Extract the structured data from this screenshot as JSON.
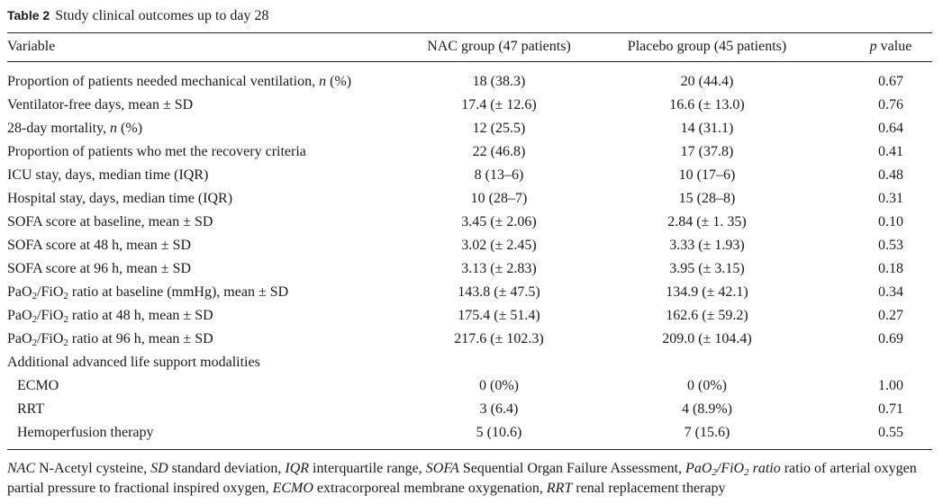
{
  "table": {
    "label": "Table 2",
    "title": "Study clinical outcomes up to day 28",
    "headers": {
      "variable": "Variable",
      "nac": "NAC group (47 patients)",
      "placebo": "Placebo group (45 patients)",
      "p_prefix": "p",
      "p_suffix": " value"
    },
    "rows": [
      {
        "variable": "Proportion of patients needed mechanical ventilation, ",
        "variable_em": "n",
        "variable_tail": " (%)",
        "nac": "18 (38.3)",
        "placebo": "20 (44.4)",
        "p": "0.67"
      },
      {
        "variable": "Ventilator-free days, mean ± SD",
        "nac": "17.4 (± 12.6)",
        "placebo": "16.6 (± 13.0)",
        "p": "0.76"
      },
      {
        "variable": "28-day mortality, ",
        "variable_em": "n",
        "variable_tail": " (%)",
        "nac": "12 (25.5)",
        "placebo": "14 (31.1)",
        "p": "0.64"
      },
      {
        "variable": "Proportion of patients who met the recovery criteria",
        "nac": "22 (46.8)",
        "placebo": "17 (37.8)",
        "p": "0.41"
      },
      {
        "variable": "ICU stay, days, median time (IQR)",
        "nac": "8 (13–6)",
        "placebo": "10 (17–6)",
        "p": "0.48"
      },
      {
        "variable": "Hospital stay, days, median time (IQR)",
        "nac": "10 (28–7)",
        "placebo": "15 (28–8)",
        "p": "0.31"
      },
      {
        "variable": "SOFA score at baseline, mean ± SD",
        "nac": "3.45 (± 2.06)",
        "placebo": "2.84 (± 1. 35)",
        "p": "0.10"
      },
      {
        "variable": "SOFA score at 48 h, mean ± SD",
        "nac": "3.02 (± 2.45)",
        "placebo": "3.33 (± 1.93)",
        "p": "0.53"
      },
      {
        "variable": "SOFA score at 96 h, mean ± SD",
        "nac": "3.13 (± 2.83)",
        "placebo": "3.95 (± 3.15)",
        "p": "0.18"
      },
      {
        "variable": "PaO2/FiO2 ratio at baseline (mmHg), mean ± SD",
        "nac": "143.8 (± 47.5)",
        "placebo": "134.9 (± 42.1)",
        "p": "0.34"
      },
      {
        "variable": "PaO2/FiO2 ratio at 48 h, mean ± SD",
        "nac": "175.4 (± 51.4)",
        "placebo": "162.6 (± 59.2)",
        "p": "0.27"
      },
      {
        "variable": "PaO2/FiO2 ratio at 96 h, mean ± SD",
        "nac": "217.6 (± 102.3)",
        "placebo": "209.0 (± 104.4)",
        "p": "0.69"
      },
      {
        "variable": "Additional advanced life support modalities",
        "nac": "",
        "placebo": "",
        "p": ""
      },
      {
        "variable": "ECMO",
        "indent": true,
        "nac": "0 (0%)",
        "placebo": "0 (0%)",
        "p": "1.00"
      },
      {
        "variable": "RRT",
        "indent": true,
        "nac": "3 (6.4)",
        "placebo": "4 (8.9%)",
        "p": "0.71"
      },
      {
        "variable": "Hemoperfusion therapy",
        "indent": true,
        "nac": "5 (10.6)",
        "placebo": "7 (15.6)",
        "p": "0.55"
      }
    ],
    "footnote": [
      {
        "term": "NAC",
        "def": " N-Acetyl cysteine, "
      },
      {
        "term": "SD",
        "def": " standard deviation, "
      },
      {
        "term": "IQR",
        "def": " interquartile range, "
      },
      {
        "term": "SOFA",
        "def": " Sequential Organ Failure Assessment, "
      },
      {
        "term": "PaO2/FiO2 ratio",
        "def": " ratio of arterial oxygen partial pressure to fractional inspired oxygen, "
      },
      {
        "term": "ECMO",
        "def": " extracorporeal membrane oxygenation, "
      },
      {
        "term": "RRT",
        "def": " renal replacement therapy"
      }
    ]
  }
}
